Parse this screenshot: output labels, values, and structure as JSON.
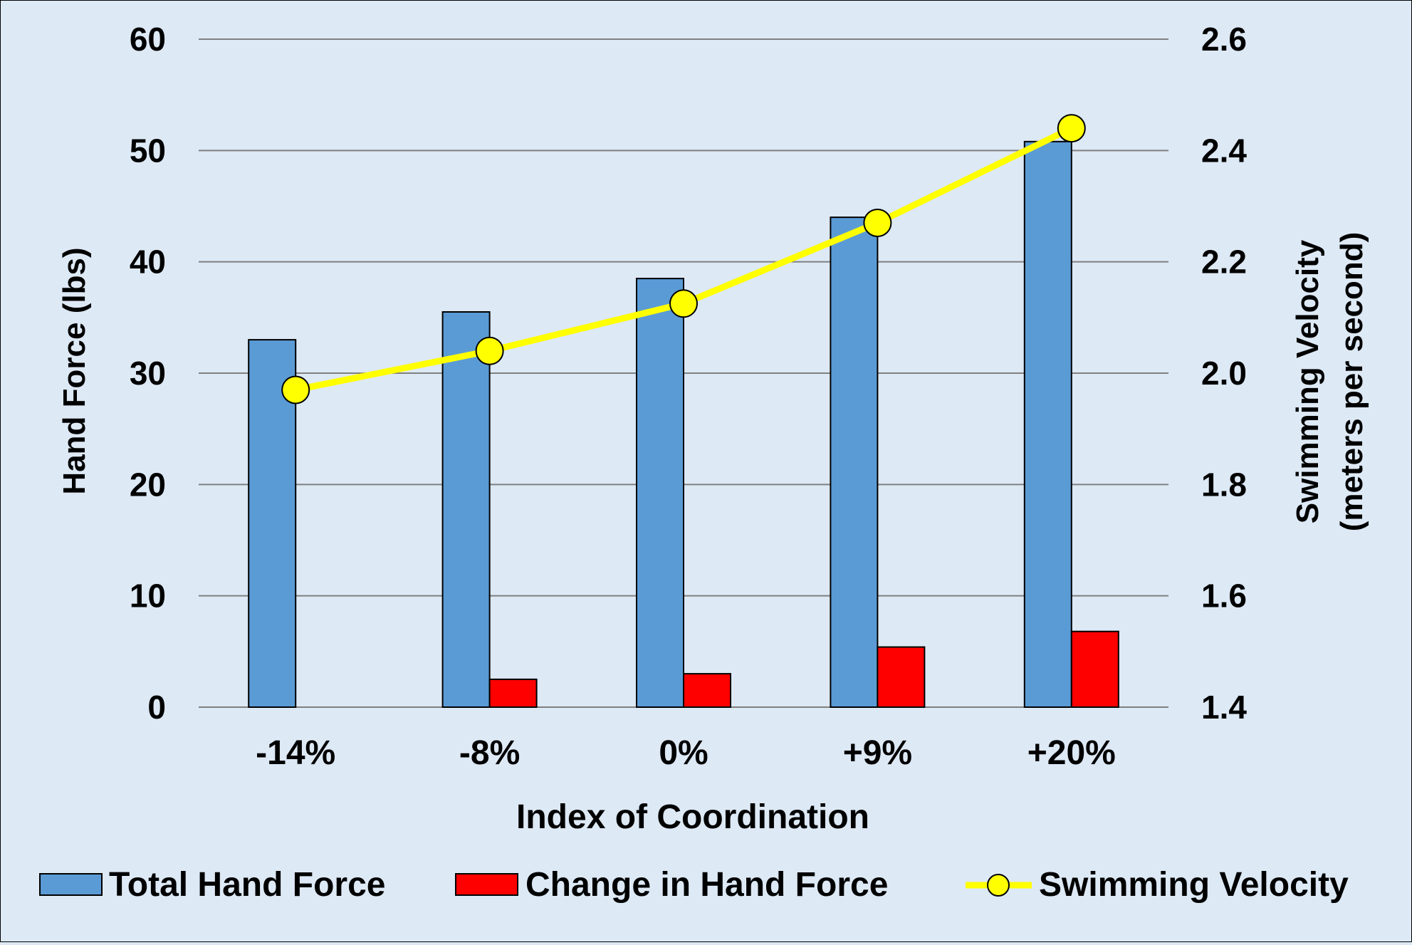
{
  "chart_data": {
    "type": "bar",
    "categories": [
      "-14%",
      "-8%",
      "0%",
      "+9%",
      "+20%"
    ],
    "xlabel": "Index of Coordination",
    "ylabel": "Hand Force (lbs)",
    "ylim": [
      0,
      60
    ],
    "yticks": [
      "0",
      "10",
      "20",
      "30",
      "40",
      "50",
      "60"
    ],
    "y2label_line1": "Swimming Velocity",
    "y2label_line2": "(meters per second)",
    "y2lim": [
      1.4,
      2.6
    ],
    "y2ticks": [
      "1.4",
      "1.6",
      "1.8",
      "2.0",
      "2.2",
      "2.4",
      "2.6"
    ],
    "grid": true,
    "legend_position": "bottom",
    "series": [
      {
        "name": "Total Hand Force",
        "kind": "bar",
        "axis": "left",
        "color": "#5b9bd5",
        "values": [
          33.0,
          35.5,
          38.5,
          44.0,
          50.8
        ]
      },
      {
        "name": "Change in Hand Force",
        "kind": "bar",
        "axis": "left",
        "color": "#ff0000",
        "values": [
          0,
          2.5,
          3.0,
          5.4,
          6.8
        ]
      },
      {
        "name": "Swimming Velocity",
        "kind": "line",
        "axis": "right",
        "color": "#ffff00",
        "values": [
          1.97,
          2.04,
          2.125,
          2.27,
          2.44
        ]
      }
    ]
  }
}
